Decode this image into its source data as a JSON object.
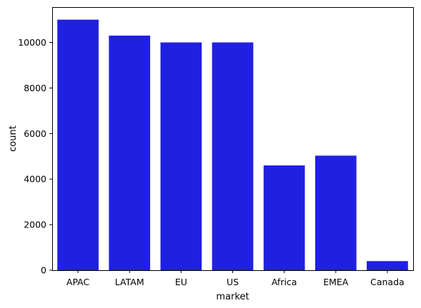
{
  "chart_data": {
    "type": "bar",
    "title": "",
    "xlabel": "market",
    "ylabel": "count",
    "categories": [
      "APAC",
      "LATAM",
      "EU",
      "US",
      "Africa",
      "EMEA",
      "Canada"
    ],
    "values": [
      11000,
      10300,
      10000,
      10000,
      4600,
      5030,
      400
    ],
    "ylim": [
      0,
      11550
    ],
    "yticks": [
      0,
      2000,
      4000,
      6000,
      8000,
      10000
    ],
    "grid": false,
    "bar_color": "#2020e0"
  }
}
